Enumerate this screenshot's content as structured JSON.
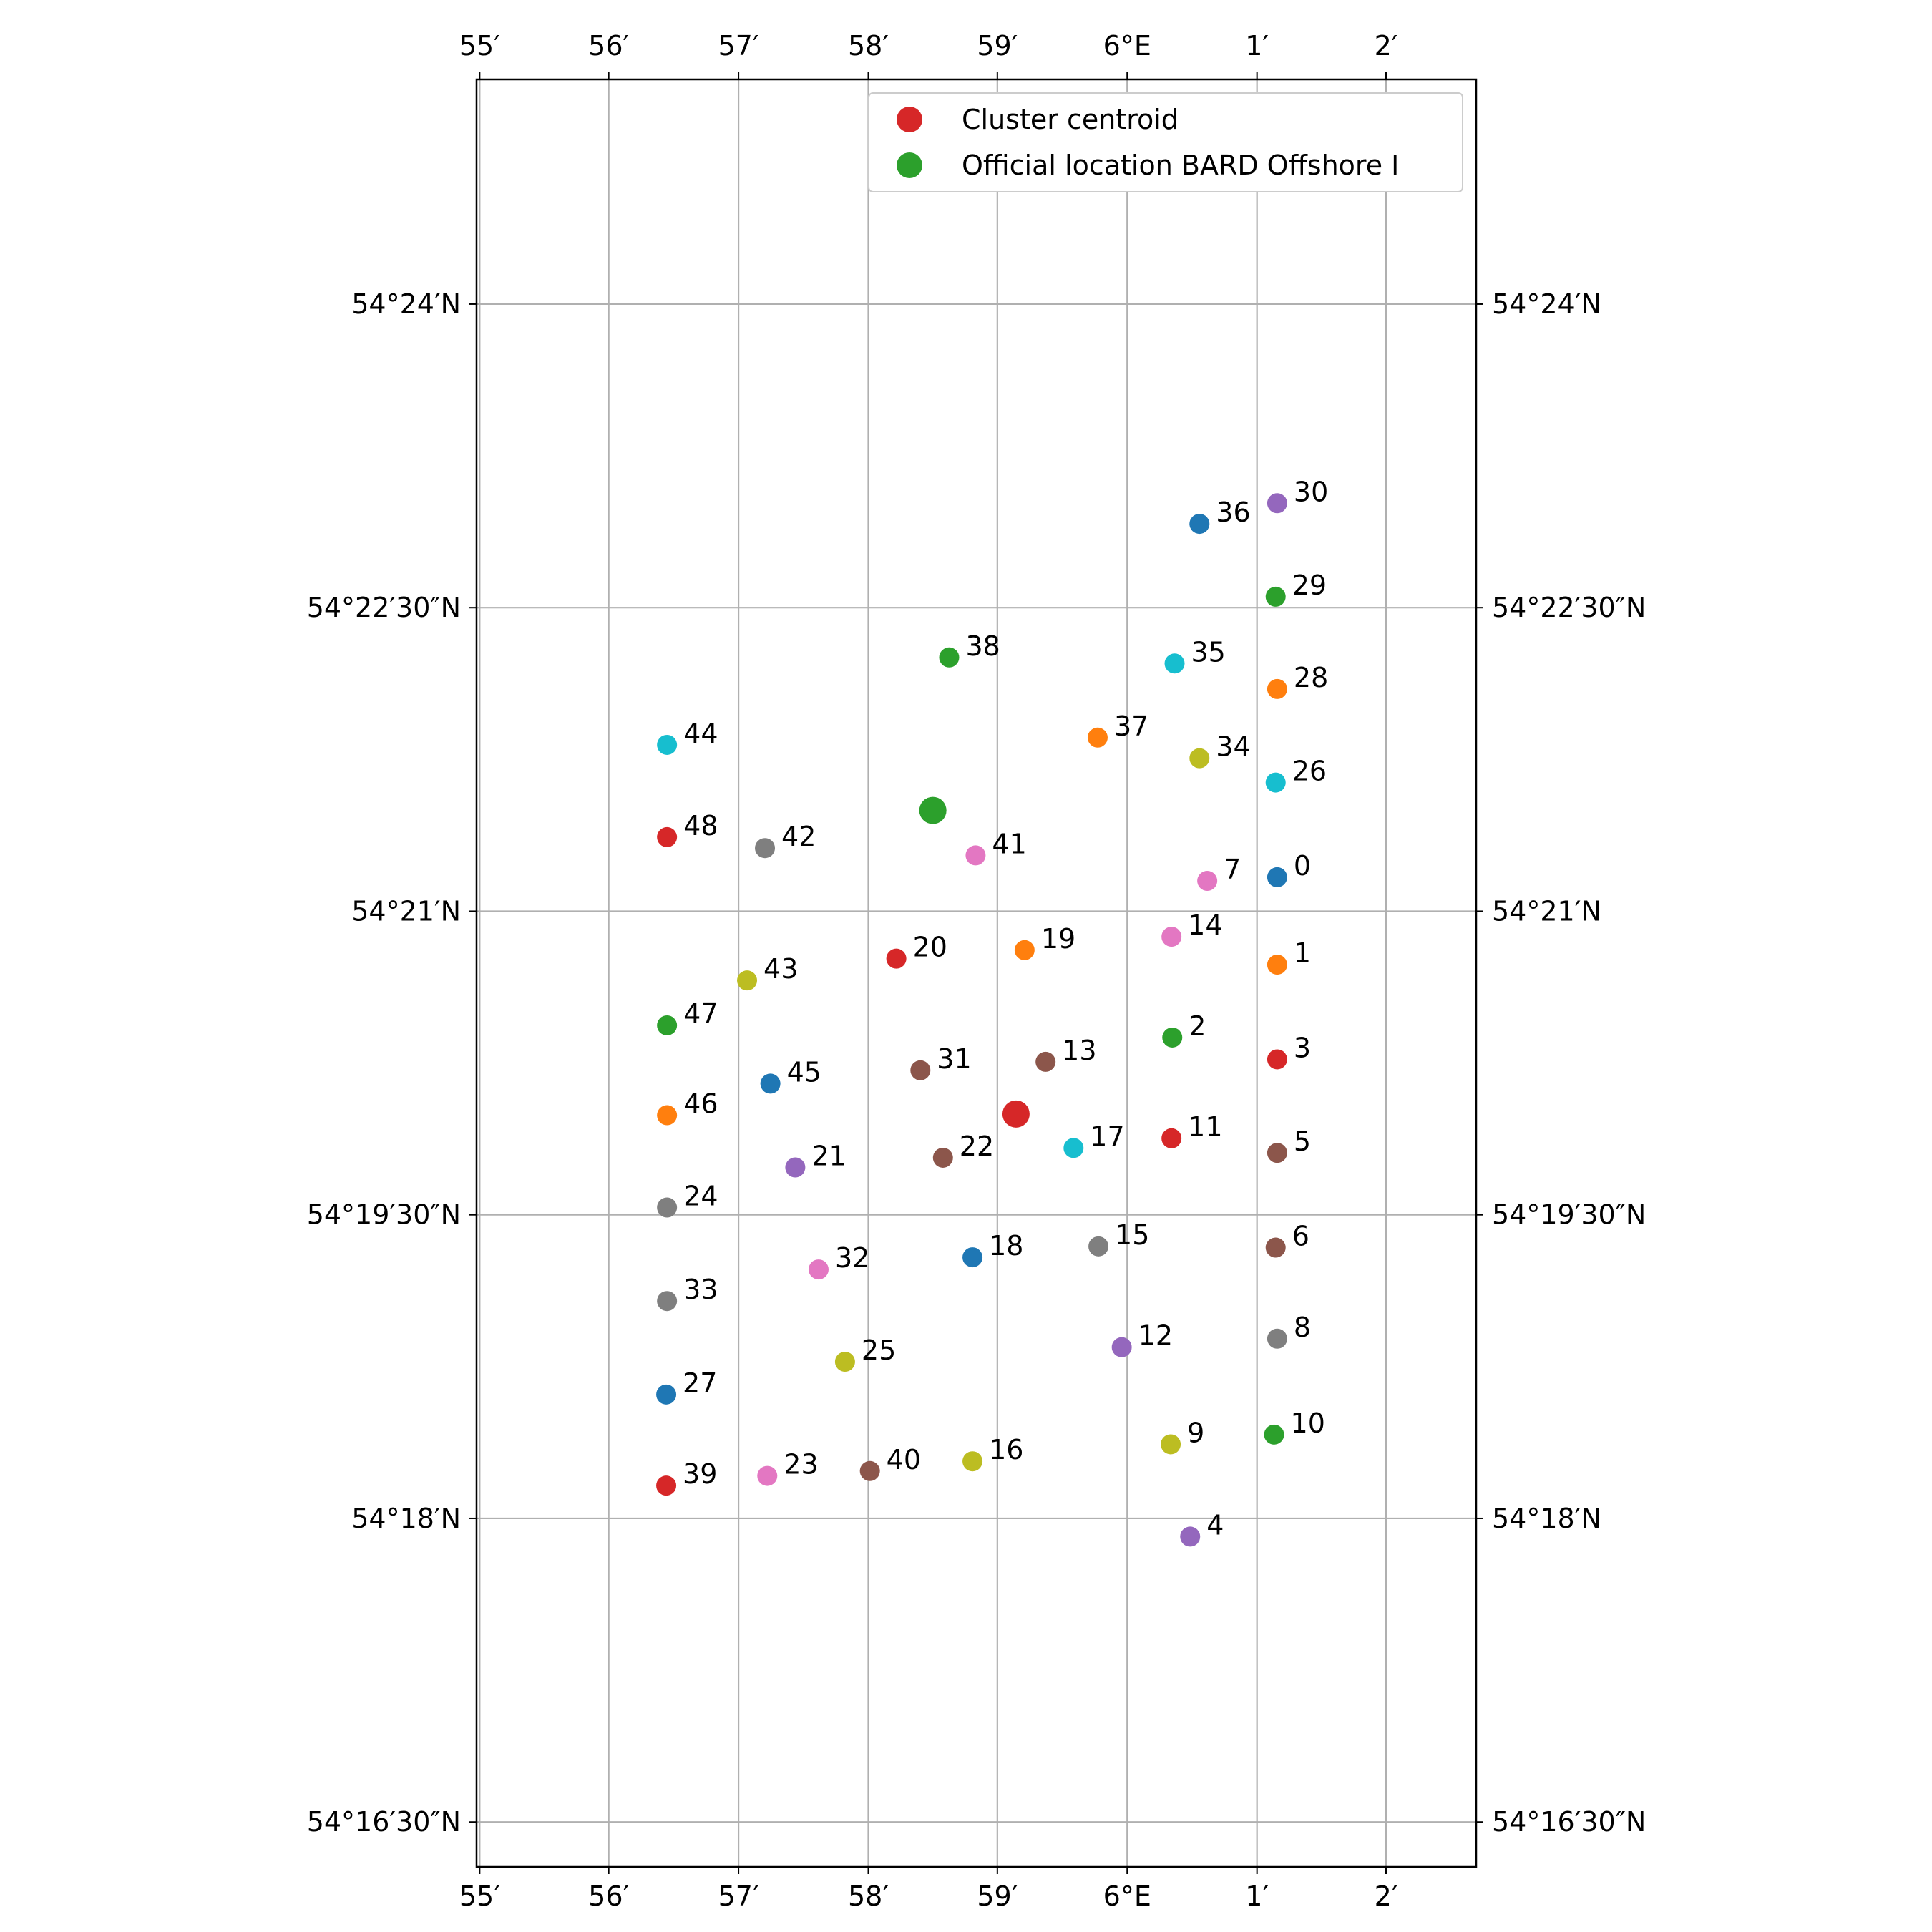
{
  "chart_data": {
    "type": "scatter",
    "x_unit": "degrees longitude (E)",
    "y_unit": "degrees latitude (N)",
    "xlim": [
      5.9163,
      6.0449
    ],
    "ylim": [
      54.2713,
      54.4185
    ],
    "grid": true,
    "legend_position": "upper-right",
    "x_ticks": [
      {
        "value": 5.9167,
        "label": "55′"
      },
      {
        "value": 5.9333,
        "label": "56′"
      },
      {
        "value": 5.95,
        "label": "57′"
      },
      {
        "value": 5.9667,
        "label": "58′"
      },
      {
        "value": 5.9833,
        "label": "59′"
      },
      {
        "value": 6.0,
        "label": "6°E"
      },
      {
        "value": 6.0167,
        "label": "1′"
      },
      {
        "value": 6.0333,
        "label": "2′"
      }
    ],
    "y_ticks": [
      {
        "value": 54.275,
        "label": "54°16′30″N"
      },
      {
        "value": 54.3,
        "label": "54°18′N"
      },
      {
        "value": 54.325,
        "label": "54°19′30″N"
      },
      {
        "value": 54.35,
        "label": "54°21′N"
      },
      {
        "value": 54.375,
        "label": "54°22′30″N"
      },
      {
        "value": 54.4,
        "label": "54°24′N"
      }
    ],
    "legend": [
      {
        "label": "Cluster centroid",
        "color": "#d62728"
      },
      {
        "label": "Official location BARD Offshore I",
        "color": "#2ca02c"
      }
    ],
    "special_points": [
      {
        "name": "Cluster centroid",
        "x": 5.9857,
        "y": 54.3333,
        "color": "#d62728"
      },
      {
        "name": "Official location BARD Offshore I",
        "x": 5.975,
        "y": 54.3583,
        "color": "#2ca02c"
      }
    ],
    "points": [
      {
        "label": "0",
        "x": 6.0193,
        "y": 54.3528,
        "color": "#1f77b4"
      },
      {
        "label": "1",
        "x": 6.0193,
        "y": 54.3456,
        "color": "#ff7f0e"
      },
      {
        "label": "2",
        "x": 6.0058,
        "y": 54.3396,
        "color": "#2ca02c"
      },
      {
        "label": "3",
        "x": 6.0193,
        "y": 54.3378,
        "color": "#d62728"
      },
      {
        "label": "4",
        "x": 6.0081,
        "y": 54.2985,
        "color": "#9467bd"
      },
      {
        "label": "5",
        "x": 6.0193,
        "y": 54.3301,
        "color": "#8c564b"
      },
      {
        "label": "6",
        "x": 6.0191,
        "y": 54.3223,
        "color": "#8c564b"
      },
      {
        "label": "7",
        "x": 6.0103,
        "y": 54.3525,
        "color": "#e377c2"
      },
      {
        "label": "8",
        "x": 6.0193,
        "y": 54.3148,
        "color": "#7f7f7f"
      },
      {
        "label": "9",
        "x": 6.0056,
        "y": 54.3061,
        "color": "#bcbd22"
      },
      {
        "label": "10",
        "x": 6.0189,
        "y": 54.3069,
        "color": "#2ca02c"
      },
      {
        "label": "11",
        "x": 6.0057,
        "y": 54.3313,
        "color": "#d62728"
      },
      {
        "label": "12",
        "x": 5.9993,
        "y": 54.3141,
        "color": "#9467bd"
      },
      {
        "label": "13",
        "x": 5.9895,
        "y": 54.3376,
        "color": "#8c564b"
      },
      {
        "label": "14",
        "x": 6.0057,
        "y": 54.3479,
        "color": "#e377c2"
      },
      {
        "label": "15",
        "x": 5.9963,
        "y": 54.3224,
        "color": "#7f7f7f"
      },
      {
        "label": "16",
        "x": 5.9801,
        "y": 54.3047,
        "color": "#bcbd22"
      },
      {
        "label": "17",
        "x": 5.9931,
        "y": 54.3305,
        "color": "#17becf"
      },
      {
        "label": "18",
        "x": 5.9801,
        "y": 54.3215,
        "color": "#1f77b4"
      },
      {
        "label": "19",
        "x": 5.9868,
        "y": 54.3468,
        "color": "#ff7f0e"
      },
      {
        "label": "20",
        "x": 5.9703,
        "y": 54.3461,
        "color": "#d62728"
      },
      {
        "label": "21",
        "x": 5.9573,
        "y": 54.3289,
        "color": "#9467bd"
      },
      {
        "label": "22",
        "x": 5.9763,
        "y": 54.3297,
        "color": "#8c564b"
      },
      {
        "label": "23",
        "x": 5.9537,
        "y": 54.3035,
        "color": "#e377c2"
      },
      {
        "label": "24",
        "x": 5.9408,
        "y": 54.3256,
        "color": "#7f7f7f"
      },
      {
        "label": "25",
        "x": 5.9637,
        "y": 54.3129,
        "color": "#bcbd22"
      },
      {
        "label": "26",
        "x": 6.0191,
        "y": 54.3606,
        "color": "#17becf"
      },
      {
        "label": "27",
        "x": 5.9407,
        "y": 54.3102,
        "color": "#1f77b4"
      },
      {
        "label": "28",
        "x": 6.0193,
        "y": 54.3683,
        "color": "#ff7f0e"
      },
      {
        "label": "29",
        "x": 6.0191,
        "y": 54.3759,
        "color": "#2ca02c"
      },
      {
        "label": "30",
        "x": 6.0193,
        "y": 54.3836,
        "color": "#9467bd"
      },
      {
        "label": "31",
        "x": 5.9734,
        "y": 54.3369,
        "color": "#8c564b"
      },
      {
        "label": "32",
        "x": 5.9603,
        "y": 54.3205,
        "color": "#e377c2"
      },
      {
        "label": "33",
        "x": 5.9408,
        "y": 54.3179,
        "color": "#7f7f7f"
      },
      {
        "label": "34",
        "x": 6.0093,
        "y": 54.3626,
        "color": "#bcbd22"
      },
      {
        "label": "35",
        "x": 6.0061,
        "y": 54.3704,
        "color": "#17becf"
      },
      {
        "label": "36",
        "x": 6.0093,
        "y": 54.3819,
        "color": "#1f77b4"
      },
      {
        "label": "37",
        "x": 5.9962,
        "y": 54.3643,
        "color": "#ff7f0e"
      },
      {
        "label": "38",
        "x": 5.9771,
        "y": 54.3709,
        "color": "#2ca02c"
      },
      {
        "label": "39",
        "x": 5.9407,
        "y": 54.3027,
        "color": "#d62728"
      },
      {
        "label": "40",
        "x": 5.9669,
        "y": 54.3039,
        "color": "#8c564b"
      },
      {
        "label": "41",
        "x": 5.9805,
        "y": 54.3546,
        "color": "#e377c2"
      },
      {
        "label": "42",
        "x": 5.9534,
        "y": 54.3552,
        "color": "#7f7f7f"
      },
      {
        "label": "43",
        "x": 5.9511,
        "y": 54.3443,
        "color": "#bcbd22"
      },
      {
        "label": "44",
        "x": 5.9408,
        "y": 54.3637,
        "color": "#17becf"
      },
      {
        "label": "45",
        "x": 5.9541,
        "y": 54.3358,
        "color": "#1f77b4"
      },
      {
        "label": "46",
        "x": 5.9408,
        "y": 54.3332,
        "color": "#ff7f0e"
      },
      {
        "label": "47",
        "x": 5.9408,
        "y": 54.3406,
        "color": "#2ca02c"
      },
      {
        "label": "48",
        "x": 5.9408,
        "y": 54.3561,
        "color": "#d62728"
      }
    ]
  }
}
